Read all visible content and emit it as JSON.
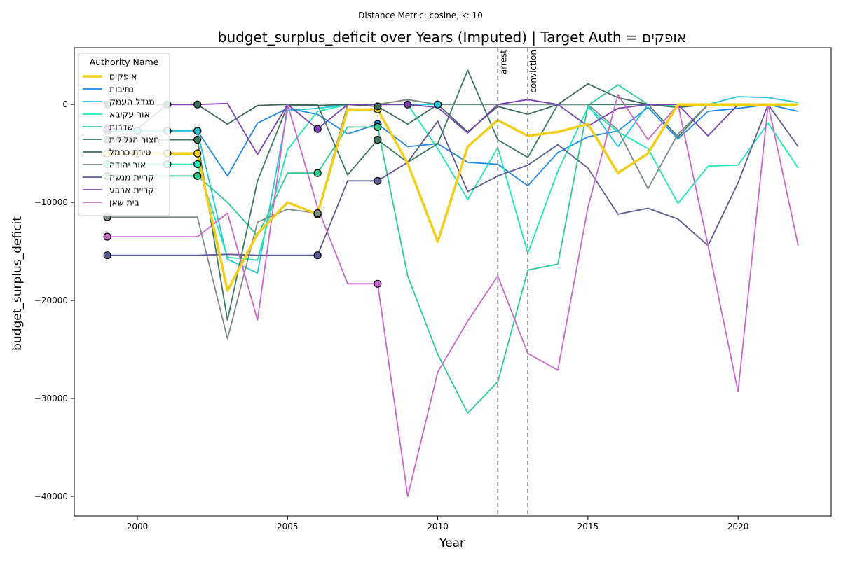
{
  "chart_data": {
    "type": "line",
    "title": "budget_surplus_deficit over Years (Imputed) | Target Auth = אופקים",
    "subtitle": "Distance Metric: cosine, k: 10",
    "xlabel": "Year",
    "ylabel": "budget_surplus_deficit",
    "xlim": [
      1997.9,
      2023.1
    ],
    "ylim": [
      -42000,
      5800
    ],
    "xticks": [
      2000,
      2005,
      2010,
      2015,
      2020
    ],
    "yticks": [
      -40000,
      -30000,
      -20000,
      -10000,
      0
    ],
    "ytick_labels": [
      "−40000",
      "−30000",
      "−20000",
      "−10000",
      "0"
    ],
    "grid": false,
    "legend": {
      "title": "Authority Name",
      "placement": "upper-left"
    },
    "vlines": [
      {
        "x": 2012,
        "label": "arrest",
        "color": "#808080"
      },
      {
        "x": 2013,
        "label": "conviction",
        "color": "#808080"
      }
    ],
    "x": [
      1999,
      2000,
      2001,
      2002,
      2003,
      2004,
      2005,
      2006,
      2007,
      2008,
      2009,
      2010,
      2011,
      2012,
      2013,
      2014,
      2015,
      2016,
      2017,
      2018,
      2019,
      2020,
      2021,
      2022
    ],
    "series": [
      {
        "name": "אופקים",
        "color": "#f2ce1b",
        "width": 3.5,
        "values": [
          -5000,
          -5000,
          -5000,
          -5000,
          -19000,
          -13200,
          -10000,
          -11200,
          -500,
          -500,
          -6000,
          -14000,
          -4300,
          -1600,
          -3200,
          -2800,
          -2000,
          -7000,
          -5000,
          0,
          0,
          0,
          0,
          0
        ],
        "imputed_x": [
          1999,
          2000,
          2001,
          2002,
          2006,
          2008
        ]
      },
      {
        "name": "נתיבות",
        "color": "#1e88e5",
        "width": 1.8,
        "values": [
          -2700,
          -2700,
          -2700,
          -2700,
          -7300,
          -1900,
          -400,
          -1000,
          -3000,
          -2000,
          -4300,
          -4000,
          -5900,
          -6100,
          -8300,
          -4900,
          -3300,
          -2700,
          -300,
          -3500,
          -700,
          -400,
          0,
          -700
        ],
        "imputed_x": [
          1999,
          2000,
          2001,
          2002,
          2008
        ]
      },
      {
        "name": "מגדל העמק",
        "color": "#26c6da",
        "width": 1.8,
        "values": [
          -2700,
          -2700,
          -2700,
          -2700,
          -15800,
          -17200,
          -600,
          -400,
          0,
          0,
          0,
          0,
          0,
          0,
          0,
          0,
          0,
          -4300,
          0,
          0,
          0,
          800,
          700,
          200
        ],
        "imputed_x": [
          1999,
          2000,
          2001,
          2002,
          2010
        ]
      },
      {
        "name": "אור עקיבא",
        "color": "#1de9b6",
        "width": 1.8,
        "values": [
          -6100,
          -6100,
          -6100,
          -6100,
          -15600,
          -15900,
          -4600,
          -700,
          0,
          0,
          0,
          -4500,
          -9700,
          -4400,
          -15200,
          -6800,
          -300,
          -2800,
          -4500,
          -10100,
          -6300,
          -6200,
          -1900,
          -6500
        ],
        "imputed_x": [
          1999,
          2001,
          2002
        ]
      },
      {
        "name": "שדרות",
        "color": "#2ecc8f",
        "width": 1.8,
        "values": [
          -7300,
          -7300,
          -7300,
          -7300,
          -10000,
          -13400,
          -7000,
          -7000,
          -2300,
          -2300,
          -17500,
          -25500,
          -31500,
          -28300,
          -16900,
          -16300,
          -100,
          2000,
          0,
          -200,
          0,
          0,
          0,
          0
        ],
        "imputed_x": [
          1999,
          2002,
          2006,
          2008
        ]
      },
      {
        "name": "חצור הגלילית",
        "color": "#3d7a5f",
        "width": 1.8,
        "values": [
          -3600,
          -3600,
          -3600,
          -3600,
          -22000,
          -7800,
          -100,
          0,
          -7200,
          -3600,
          -5900,
          -4000,
          3500,
          -3600,
          -5400,
          0,
          0,
          0,
          0,
          -3300,
          0,
          0,
          0,
          0
        ],
        "imputed_x": [
          1999,
          2002,
          2008
        ]
      },
      {
        "name": "טירת כרמל",
        "color": "#3b6b58",
        "width": 1.8,
        "values": [
          0,
          0,
          0,
          0,
          -2000,
          -100,
          0,
          -100,
          0,
          -200,
          -2000,
          0,
          -2800,
          -200,
          -1000,
          0,
          2100,
          700,
          0,
          -300,
          0,
          0,
          0,
          0
        ],
        "imputed_x": [
          1999,
          2001,
          2002,
          2008
        ]
      },
      {
        "name": "אור יהודה",
        "color": "#7d8c86",
        "width": 1.8,
        "values": [
          -11500,
          -11500,
          -11500,
          -11500,
          -23900,
          -12000,
          -10700,
          -11100,
          0,
          0,
          500,
          0,
          0,
          0,
          0,
          0,
          0,
          -2600,
          -8600,
          -3000,
          0,
          0,
          0,
          0
        ],
        "imputed_x": [
          1999,
          2006
        ]
      },
      {
        "name": "קריית מנשה",
        "color": "#5c5c96",
        "width": 1.8,
        "values": [
          -15400,
          -15400,
          -15400,
          -15400,
          -15300,
          -15400,
          -15400,
          -15400,
          -7800,
          -7800,
          -5900,
          -1700,
          -8900,
          -7300,
          -6200,
          -4100,
          -6500,
          -11200,
          -10600,
          -11700,
          -14400,
          -8000,
          0,
          -4300
        ],
        "imputed_x": [
          1999,
          2006,
          2008
        ]
      },
      {
        "name": "קריית ארבע",
        "color": "#7b3fb5",
        "width": 1.8,
        "values": [
          -2500,
          -2500,
          0,
          0,
          100,
          -5100,
          0,
          -2500,
          0,
          0,
          0,
          -300,
          -2900,
          0,
          500,
          0,
          -2200,
          -400,
          0,
          0,
          -3200,
          0,
          0,
          0
        ],
        "imputed_x": [
          1999,
          2006,
          2009
        ]
      },
      {
        "name": "בית שאן",
        "color": "#cc66cc",
        "width": 1.8,
        "values": [
          -13500,
          -13500,
          -13500,
          -13500,
          -11100,
          -22000,
          0,
          -10500,
          -18300,
          -18300,
          -40000,
          -27300,
          -22100,
          -17500,
          -25400,
          -27100,
          -10500,
          1000,
          -3600,
          0,
          -14400,
          -29300,
          0,
          -14400
        ],
        "imputed_x": [
          1999,
          2008
        ]
      }
    ]
  }
}
